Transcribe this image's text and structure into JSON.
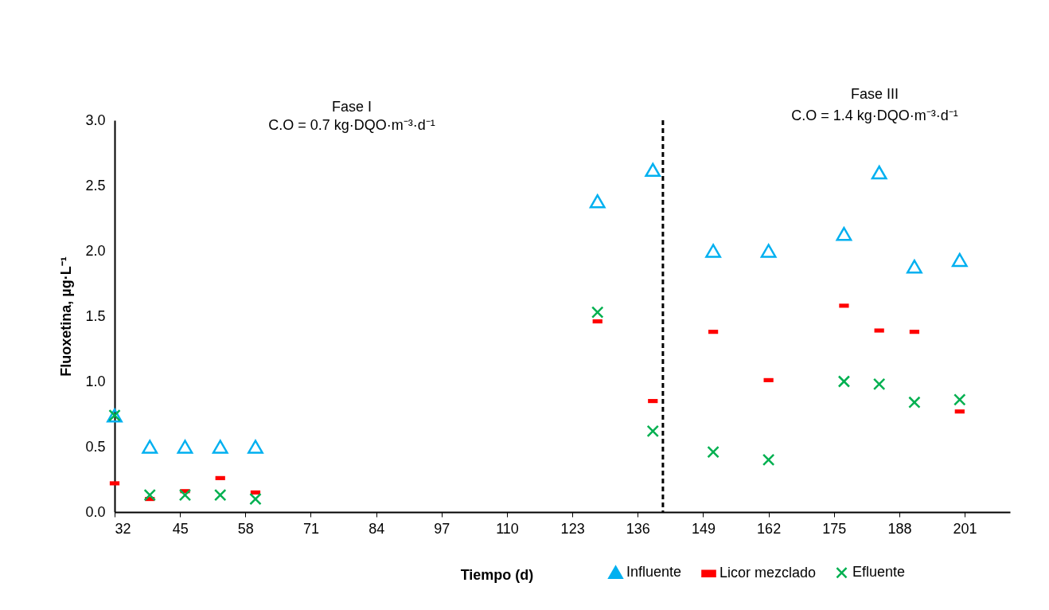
{
  "chart_data": {
    "type": "scatter",
    "xlabel": "Tiempo (d)",
    "ylabel": "Fluoxetina, µg·L⁻¹",
    "annotations": [
      "Fase I",
      "C.O = 0.7 kg·DQO·m⁻³·d⁻¹",
      "Fase III",
      "C.O = 1.4 kg·DQO·m⁻³·d⁻¹"
    ],
    "x": [
      32,
      39,
      46,
      53,
      60,
      128,
      139,
      151,
      162,
      177,
      184,
      191,
      200
    ],
    "series": [
      {
        "name": "Influente",
        "color": "#00b0f0",
        "marker": "triangle",
        "values": [
          0.74,
          0.5,
          0.5,
          0.5,
          0.5,
          2.38,
          2.62,
          2.0,
          2.0,
          2.13,
          2.6,
          1.88,
          1.93
        ]
      },
      {
        "name": "Licor mezclado",
        "color": "#ff0000",
        "marker": "square",
        "values": [
          0.22,
          0.1,
          0.16,
          0.26,
          0.15,
          1.46,
          0.85,
          1.38,
          1.01,
          1.58,
          1.39,
          1.38,
          0.77
        ]
      },
      {
        "name": "Efluente",
        "color": "#00b050",
        "marker": "cross",
        "values": [
          0.74,
          0.13,
          0.13,
          0.13,
          0.1,
          1.53,
          0.62,
          0.46,
          0.4,
          1.0,
          0.98,
          0.84,
          0.86
        ]
      }
    ],
    "xlim": [
      32,
      210
    ],
    "xticks": [
      32,
      45,
      58,
      71,
      84,
      97,
      110,
      123,
      136,
      149,
      162,
      175,
      188,
      201
    ],
    "ylim": [
      0,
      3
    ],
    "yticks": [
      {
        "value": 0,
        "label": "0.0"
      },
      {
        "value": 0.5,
        "label": "0.5"
      },
      {
        "value": 1,
        "label": "1.0"
      },
      {
        "value": 1.5,
        "label": "1.5"
      },
      {
        "value": 2,
        "label": "2.0"
      },
      {
        "value": 2.5,
        "label": "2.5"
      },
      {
        "value": 3,
        "label": "3.0"
      }
    ],
    "ref_lines": [
      {
        "axis": "x",
        "value": 141,
        "color": "#000000",
        "line_style": "dashed"
      }
    ],
    "grid": false,
    "legend": "bottom"
  }
}
